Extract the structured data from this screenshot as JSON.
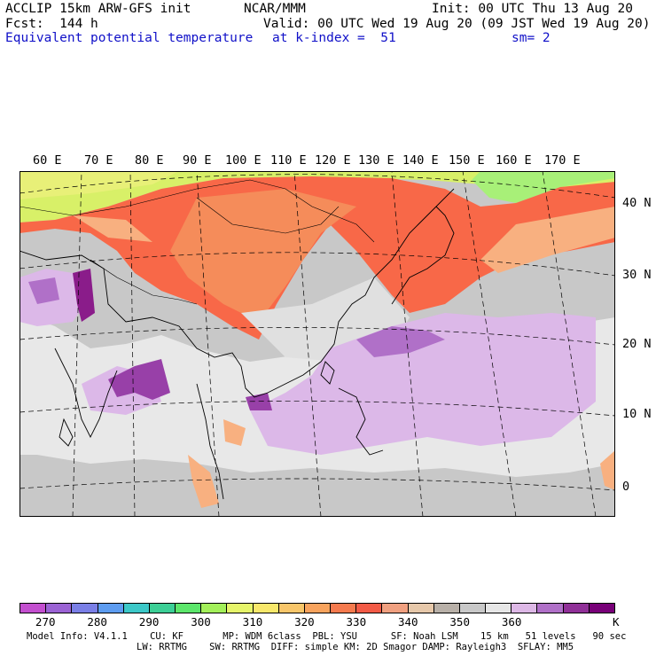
{
  "header": {
    "model_title": "ACCLIP 15km ARW-GFS init",
    "org": "NCAR/MMM",
    "init": "Init: 00 UTC Thu 13 Aug 20",
    "fcst": "Fcst:  144 h",
    "valid": "Valid: 00 UTC Wed 19 Aug 20 (09 JST Wed 19 Aug 20)",
    "field": "Equivalent potential temperature",
    "level": "at k-index =  51",
    "smooth": "sm= 2"
  },
  "map": {
    "lon_labels": [
      "60 E",
      "70 E",
      "80 E",
      "90 E",
      "100 E",
      "110 E",
      "120 E",
      "130 E",
      "140 E",
      "150 E",
      "160 E",
      "170 E"
    ],
    "lat_labels": [
      "40 N",
      "30 N",
      "20 N",
      "10 N",
      "0"
    ],
    "background_color": "#c8c8c8"
  },
  "colorbar": {
    "colors": [
      "#c34fcf",
      "#9b63d4",
      "#7a7fe6",
      "#5d9cf0",
      "#3cc8c8",
      "#3ccf96",
      "#5ce66b",
      "#a3f05a",
      "#e6f56a",
      "#f8e86b",
      "#f8c66a",
      "#f8a35d",
      "#f57a4e",
      "#f25a46",
      "#f0a080",
      "#e6c8aa",
      "#b8b0a8",
      "#c8c8c8",
      "#e6e6e6",
      "#ddb8e6",
      "#b070c8",
      "#903098",
      "#780078"
    ],
    "labels": [
      "270",
      "280",
      "290",
      "300",
      "310",
      "320",
      "330",
      "340",
      "350",
      "360"
    ],
    "unit": "K"
  },
  "model_info": {
    "line1": "Model Info: V4.1.1    CU: KF       MP: WDM 6class  PBL: YSU      SF: Noah LSM    15 km   51 levels   90 sec",
    "line2": "LW: RRTMG    SW: RRTMG  DIFF: simple KM: 2D Smagor DAMP: Rayleigh3  SFLAY: MM5"
  }
}
